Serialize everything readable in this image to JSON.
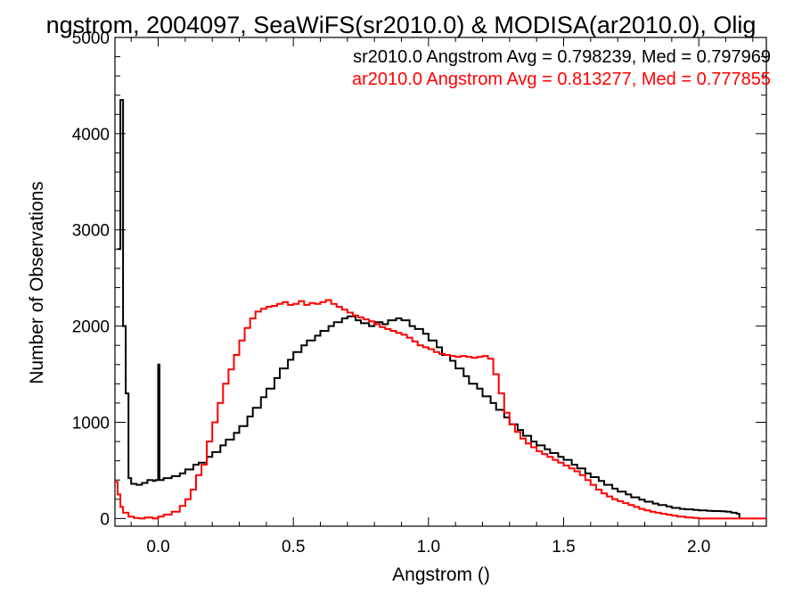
{
  "chart_data": {
    "type": "line",
    "title": "ngstrom, 2004097, SeaWiFS(sr2010.0) & MODISA(ar2010.0), Olig",
    "xlabel": "Angstrom ()",
    "ylabel": "Number of Observations",
    "xlim": [
      -0.16,
      2.25
    ],
    "ylim": [
      -80,
      5000
    ],
    "x_ticks": [
      0.0,
      0.5,
      1.0,
      1.5,
      2.0
    ],
    "x_tick_labels": [
      "0.0",
      "0.5",
      "1.0",
      "1.5",
      "2.0"
    ],
    "y_ticks": [
      0,
      1000,
      2000,
      3000,
      4000,
      5000
    ],
    "y_tick_labels": [
      "0",
      "1000",
      "2000",
      "3000",
      "4000",
      "5000"
    ],
    "grid": false,
    "legend": [
      {
        "text": "sr2010.0 Angstrom Avg = 0.798239, Med = 0.797969",
        "color": "#000000"
      },
      {
        "text": "ar2010.0 Angstrom Avg = 0.813277, Med = 0.777855",
        "color": "#ff0000"
      }
    ],
    "series": [
      {
        "color": "#000000",
        "step": true,
        "points": [
          [
            -0.15,
            2800
          ],
          [
            -0.14,
            4350
          ],
          [
            -0.13,
            2000
          ],
          [
            -0.12,
            1300
          ],
          [
            -0.11,
            420
          ],
          [
            -0.1,
            360
          ],
          [
            -0.08,
            350
          ],
          [
            -0.06,
            370
          ],
          [
            -0.04,
            400
          ],
          [
            -0.02,
            390
          ],
          [
            -0.01,
            400
          ],
          [
            0.0,
            1600
          ],
          [
            0.005,
            400
          ],
          [
            0.02,
            420
          ],
          [
            0.05,
            440
          ],
          [
            0.08,
            470
          ],
          [
            0.1,
            510
          ],
          [
            0.13,
            560
          ],
          [
            0.15,
            580
          ],
          [
            0.18,
            640
          ],
          [
            0.2,
            690
          ],
          [
            0.23,
            760
          ],
          [
            0.25,
            820
          ],
          [
            0.28,
            890
          ],
          [
            0.3,
            960
          ],
          [
            0.33,
            1060
          ],
          [
            0.35,
            1150
          ],
          [
            0.38,
            1260
          ],
          [
            0.4,
            1350
          ],
          [
            0.43,
            1460
          ],
          [
            0.45,
            1560
          ],
          [
            0.48,
            1650
          ],
          [
            0.5,
            1730
          ],
          [
            0.53,
            1800
          ],
          [
            0.55,
            1850
          ],
          [
            0.58,
            1900
          ],
          [
            0.6,
            1950
          ],
          [
            0.63,
            2000
          ],
          [
            0.65,
            2040
          ],
          [
            0.68,
            2080
          ],
          [
            0.7,
            2100
          ],
          [
            0.73,
            2060
          ],
          [
            0.75,
            2030
          ],
          [
            0.78,
            2000
          ],
          [
            0.8,
            2040
          ],
          [
            0.83,
            2020
          ],
          [
            0.85,
            2060
          ],
          [
            0.88,
            2080
          ],
          [
            0.9,
            2060
          ],
          [
            0.93,
            2000
          ],
          [
            0.95,
            1970
          ],
          [
            0.98,
            1920
          ],
          [
            1.0,
            1850
          ],
          [
            1.03,
            1780
          ],
          [
            1.05,
            1700
          ],
          [
            1.08,
            1640
          ],
          [
            1.1,
            1560
          ],
          [
            1.13,
            1480
          ],
          [
            1.15,
            1400
          ],
          [
            1.18,
            1350
          ],
          [
            1.2,
            1270
          ],
          [
            1.23,
            1200
          ],
          [
            1.25,
            1130
          ],
          [
            1.28,
            1050
          ],
          [
            1.3,
            980
          ],
          [
            1.33,
            920
          ],
          [
            1.35,
            860
          ],
          [
            1.38,
            800
          ],
          [
            1.4,
            760
          ],
          [
            1.43,
            720
          ],
          [
            1.45,
            680
          ],
          [
            1.48,
            640
          ],
          [
            1.5,
            610
          ],
          [
            1.53,
            560
          ],
          [
            1.55,
            520
          ],
          [
            1.58,
            470
          ],
          [
            1.6,
            430
          ],
          [
            1.63,
            390
          ],
          [
            1.65,
            350
          ],
          [
            1.68,
            310
          ],
          [
            1.7,
            280
          ],
          [
            1.73,
            250
          ],
          [
            1.75,
            220
          ],
          [
            1.78,
            195
          ],
          [
            1.8,
            175
          ],
          [
            1.83,
            155
          ],
          [
            1.85,
            140
          ],
          [
            1.88,
            125
          ],
          [
            1.9,
            110
          ],
          [
            1.93,
            100
          ],
          [
            1.95,
            95
          ],
          [
            1.98,
            90
          ],
          [
            2.0,
            85
          ],
          [
            2.03,
            80
          ],
          [
            2.05,
            78
          ],
          [
            2.08,
            75
          ],
          [
            2.1,
            70
          ],
          [
            2.12,
            60
          ],
          [
            2.14,
            50
          ],
          [
            2.15,
            0
          ]
        ]
      },
      {
        "color": "#ff0000",
        "step": true,
        "points": [
          [
            -0.16,
            380
          ],
          [
            -0.15,
            250
          ],
          [
            -0.14,
            120
          ],
          [
            -0.13,
            60
          ],
          [
            -0.11,
            20
          ],
          [
            -0.09,
            5
          ],
          [
            -0.07,
            0
          ],
          [
            -0.05,
            10
          ],
          [
            -0.02,
            0
          ],
          [
            0.0,
            20
          ],
          [
            0.02,
            40
          ],
          [
            0.05,
            70
          ],
          [
            0.08,
            130
          ],
          [
            0.1,
            200
          ],
          [
            0.12,
            300
          ],
          [
            0.14,
            450
          ],
          [
            0.16,
            560
          ],
          [
            0.18,
            800
          ],
          [
            0.2,
            1000
          ],
          [
            0.22,
            1200
          ],
          [
            0.24,
            1400
          ],
          [
            0.26,
            1550
          ],
          [
            0.28,
            1700
          ],
          [
            0.3,
            1850
          ],
          [
            0.32,
            1980
          ],
          [
            0.34,
            2080
          ],
          [
            0.36,
            2150
          ],
          [
            0.38,
            2180
          ],
          [
            0.4,
            2200
          ],
          [
            0.42,
            2210
          ],
          [
            0.44,
            2230
          ],
          [
            0.46,
            2250
          ],
          [
            0.48,
            2220
          ],
          [
            0.5,
            2230
          ],
          [
            0.52,
            2260
          ],
          [
            0.54,
            2220
          ],
          [
            0.56,
            2240
          ],
          [
            0.58,
            2230
          ],
          [
            0.6,
            2250
          ],
          [
            0.62,
            2270
          ],
          [
            0.64,
            2230
          ],
          [
            0.66,
            2200
          ],
          [
            0.68,
            2170
          ],
          [
            0.7,
            2140
          ],
          [
            0.72,
            2110
          ],
          [
            0.74,
            2090
          ],
          [
            0.76,
            2070
          ],
          [
            0.78,
            2050
          ],
          [
            0.8,
            2020
          ],
          [
            0.82,
            1990
          ],
          [
            0.84,
            1970
          ],
          [
            0.86,
            1950
          ],
          [
            0.88,
            1930
          ],
          [
            0.9,
            1910
          ],
          [
            0.92,
            1880
          ],
          [
            0.94,
            1840
          ],
          [
            0.96,
            1800
          ],
          [
            0.98,
            1780
          ],
          [
            1.0,
            1760
          ],
          [
            1.02,
            1730
          ],
          [
            1.04,
            1710
          ],
          [
            1.06,
            1700
          ],
          [
            1.08,
            1690
          ],
          [
            1.1,
            1680
          ],
          [
            1.12,
            1690
          ],
          [
            1.14,
            1680
          ],
          [
            1.16,
            1670
          ],
          [
            1.18,
            1680
          ],
          [
            1.2,
            1690
          ],
          [
            1.22,
            1660
          ],
          [
            1.24,
            1500
          ],
          [
            1.26,
            1300
          ],
          [
            1.28,
            1100
          ],
          [
            1.3,
            980
          ],
          [
            1.32,
            900
          ],
          [
            1.34,
            830
          ],
          [
            1.36,
            780
          ],
          [
            1.38,
            740
          ],
          [
            1.4,
            700
          ],
          [
            1.42,
            670
          ],
          [
            1.44,
            640
          ],
          [
            1.46,
            610
          ],
          [
            1.48,
            580
          ],
          [
            1.5,
            550
          ],
          [
            1.52,
            520
          ],
          [
            1.54,
            490
          ],
          [
            1.56,
            450
          ],
          [
            1.58,
            400
          ],
          [
            1.6,
            350
          ],
          [
            1.62,
            300
          ],
          [
            1.64,
            260
          ],
          [
            1.66,
            230
          ],
          [
            1.68,
            200
          ],
          [
            1.7,
            180
          ],
          [
            1.72,
            160
          ],
          [
            1.74,
            140
          ],
          [
            1.76,
            120
          ],
          [
            1.78,
            100
          ],
          [
            1.8,
            85
          ],
          [
            1.82,
            70
          ],
          [
            1.84,
            60
          ],
          [
            1.86,
            50
          ],
          [
            1.88,
            40
          ],
          [
            1.9,
            30
          ],
          [
            1.92,
            20
          ],
          [
            1.95,
            10
          ],
          [
            1.98,
            5
          ],
          [
            2.0,
            0
          ],
          [
            2.1,
            0
          ],
          [
            2.2,
            0
          ],
          [
            2.25,
            0
          ]
        ]
      }
    ]
  }
}
